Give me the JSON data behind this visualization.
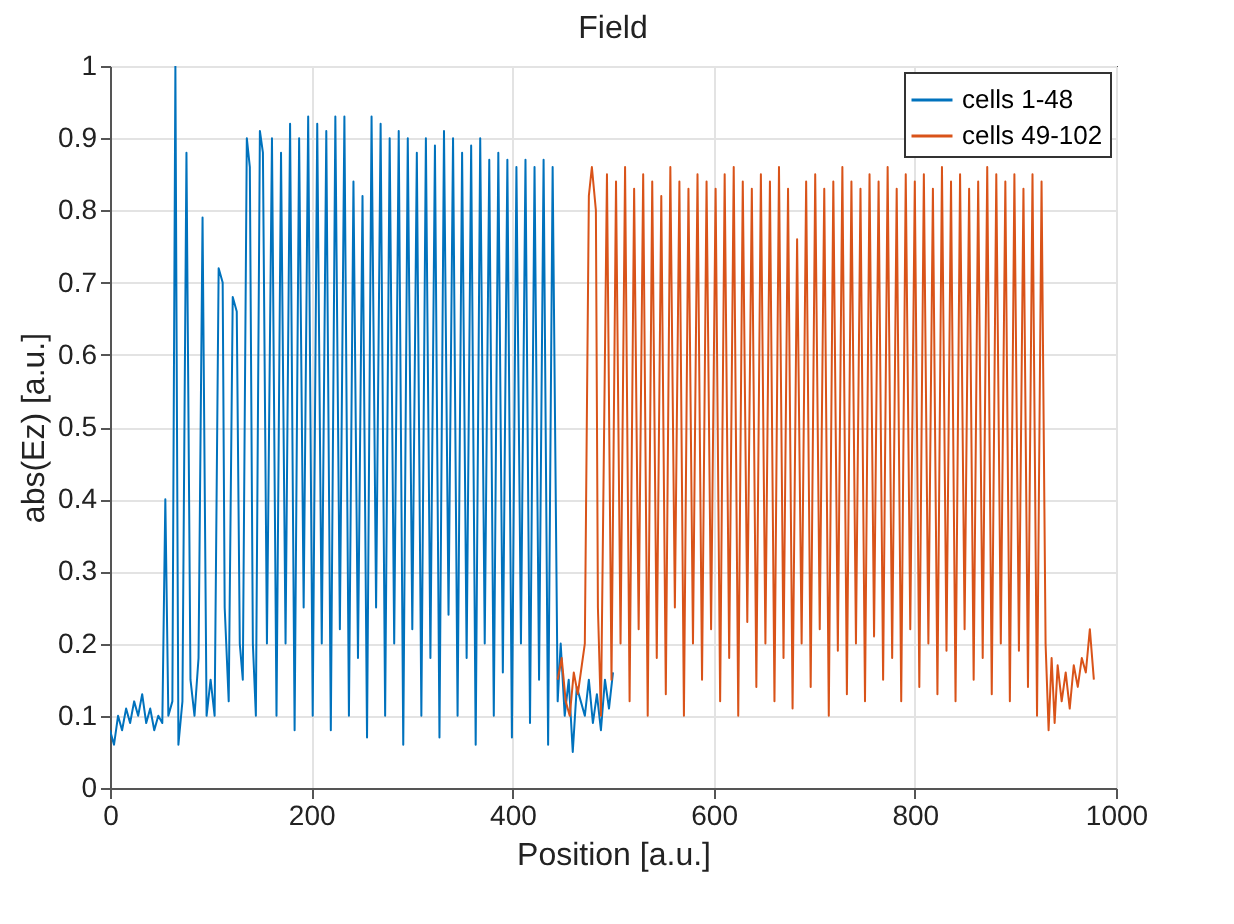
{
  "chart_data": {
    "type": "line",
    "title": "Field",
    "xlabel": "Position [a.u.]",
    "ylabel": "abs(Ez) [a.u.]",
    "xlim": [
      0,
      1000
    ],
    "xticks": [
      0,
      200,
      400,
      600,
      800,
      1000
    ],
    "ylim": [
      0,
      1
    ],
    "yticks": [
      0,
      0.1,
      0.2,
      0.3,
      0.4,
      0.5,
      0.6,
      0.7,
      0.8,
      0.9,
      1
    ],
    "grid": true,
    "legend": "top right",
    "series": [
      {
        "name": "cells 1-48",
        "color": "#0072bd",
        "x": [
          0,
          4,
          8,
          12,
          16,
          20,
          24,
          28,
          32,
          36,
          40,
          44,
          48,
          52,
          55,
          58,
          62,
          65,
          68,
          72,
          76,
          80,
          84,
          88,
          92,
          96,
          100,
          104,
          108,
          112,
          114,
          118,
          122,
          126,
          129,
          132,
          136,
          139,
          142,
          145,
          149,
          152,
          156,
          161,
          165.5,
          170,
          174.5,
          179,
          183.5,
          188,
          192.5,
          197,
          201.5,
          206,
          210.5,
          215,
          219.5,
          224,
          228.5,
          233,
          237.5,
          242,
          246.5,
          251,
          255.5,
          260,
          264.5,
          269,
          273.5,
          278,
          282.5,
          287,
          291.5,
          296,
          300.5,
          305,
          309.5,
          314,
          318.5,
          323,
          327.5,
          332,
          336.5,
          341,
          345.5,
          350,
          354.5,
          359,
          363.5,
          368,
          372.5,
          377,
          381.5,
          386,
          390.5,
          395,
          399.5,
          404,
          408.5,
          413,
          417.5,
          422,
          426.5,
          431,
          435.5,
          440,
          445,
          448,
          452,
          456,
          460,
          464,
          468,
          472,
          476,
          480,
          484,
          488,
          492,
          496,
          500
        ],
        "values": [
          0.08,
          0.06,
          0.1,
          0.08,
          0.11,
          0.09,
          0.12,
          0.1,
          0.13,
          0.09,
          0.11,
          0.08,
          0.1,
          0.09,
          0.4,
          0.1,
          0.12,
          1.0,
          0.06,
          0.12,
          0.88,
          0.15,
          0.1,
          0.18,
          0.79,
          0.1,
          0.15,
          0.1,
          0.72,
          0.7,
          0.25,
          0.12,
          0.68,
          0.66,
          0.2,
          0.15,
          0.9,
          0.86,
          0.2,
          0.1,
          0.91,
          0.88,
          0.2,
          0.9,
          0.1,
          0.88,
          0.2,
          0.92,
          0.08,
          0.9,
          0.25,
          0.93,
          0.1,
          0.92,
          0.2,
          0.91,
          0.08,
          0.93,
          0.22,
          0.93,
          0.1,
          0.84,
          0.18,
          0.82,
          0.07,
          0.93,
          0.25,
          0.92,
          0.1,
          0.9,
          0.2,
          0.91,
          0.06,
          0.9,
          0.22,
          0.88,
          0.1,
          0.9,
          0.18,
          0.89,
          0.07,
          0.91,
          0.24,
          0.9,
          0.1,
          0.88,
          0.18,
          0.89,
          0.06,
          0.9,
          0.2,
          0.87,
          0.1,
          0.88,
          0.16,
          0.87,
          0.07,
          0.86,
          0.2,
          0.87,
          0.09,
          0.86,
          0.15,
          0.87,
          0.06,
          0.86,
          0.12,
          0.2,
          0.1,
          0.15,
          0.05,
          0.14,
          0.12,
          0.1,
          0.15,
          0.09,
          0.13,
          0.08,
          0.15,
          0.11,
          0.16
        ]
      },
      {
        "name": "cells 49-102",
        "color": "#d95319",
        "x": [
          445,
          449,
          453,
          457,
          461,
          465,
          469,
          472,
          476,
          479,
          483,
          485,
          488,
          494,
          498.5,
          503,
          507.5,
          512,
          516.5,
          521,
          525.5,
          530,
          534.5,
          539,
          543.5,
          548,
          552.5,
          557,
          561.5,
          566,
          570.5,
          575,
          579.5,
          584,
          588.5,
          593,
          597.5,
          602,
          606.5,
          611,
          615.5,
          620,
          624.5,
          629,
          633.5,
          638,
          642.5,
          647,
          651.5,
          656,
          660.5,
          665,
          669.5,
          674,
          678.5,
          683,
          687.5,
          692,
          696.5,
          701,
          705.5,
          710,
          714.5,
          719,
          723.5,
          728,
          732.5,
          737,
          741.5,
          746,
          750.5,
          755,
          759.5,
          764,
          768.5,
          773,
          777.5,
          782,
          786.5,
          791,
          795.5,
          800,
          804.5,
          809,
          813.5,
          818,
          822.5,
          827,
          831.5,
          836,
          840.5,
          845,
          849.5,
          854,
          858.5,
          863,
          867.5,
          872,
          876.5,
          881,
          885.5,
          890,
          894.5,
          899,
          903.5,
          908,
          912.5,
          917,
          921.5,
          926,
          930,
          933,
          936,
          939,
          942,
          946,
          950,
          954,
          958,
          962,
          966,
          970,
          974,
          978
        ],
        "values": [
          0.15,
          0.18,
          0.12,
          0.1,
          0.16,
          0.13,
          0.17,
          0.2,
          0.82,
          0.86,
          0.8,
          0.25,
          0.1,
          0.85,
          0.15,
          0.84,
          0.2,
          0.86,
          0.12,
          0.83,
          0.22,
          0.85,
          0.1,
          0.84,
          0.18,
          0.82,
          0.13,
          0.86,
          0.25,
          0.84,
          0.1,
          0.83,
          0.2,
          0.85,
          0.15,
          0.84,
          0.22,
          0.83,
          0.12,
          0.85,
          0.18,
          0.86,
          0.1,
          0.84,
          0.23,
          0.83,
          0.14,
          0.85,
          0.2,
          0.84,
          0.12,
          0.86,
          0.18,
          0.83,
          0.11,
          0.76,
          0.2,
          0.84,
          0.14,
          0.85,
          0.22,
          0.83,
          0.1,
          0.84,
          0.19,
          0.86,
          0.13,
          0.84,
          0.2,
          0.83,
          0.12,
          0.85,
          0.21,
          0.84,
          0.15,
          0.86,
          0.18,
          0.83,
          0.12,
          0.85,
          0.22,
          0.84,
          0.14,
          0.85,
          0.2,
          0.83,
          0.13,
          0.86,
          0.19,
          0.84,
          0.12,
          0.85,
          0.22,
          0.83,
          0.15,
          0.84,
          0.18,
          0.86,
          0.13,
          0.85,
          0.2,
          0.84,
          0.12,
          0.85,
          0.19,
          0.83,
          0.14,
          0.85,
          0.1,
          0.84,
          0.2,
          0.08,
          0.18,
          0.09,
          0.17,
          0.12,
          0.16,
          0.11,
          0.17,
          0.14,
          0.18,
          0.16,
          0.22,
          0.15
        ]
      }
    ]
  }
}
